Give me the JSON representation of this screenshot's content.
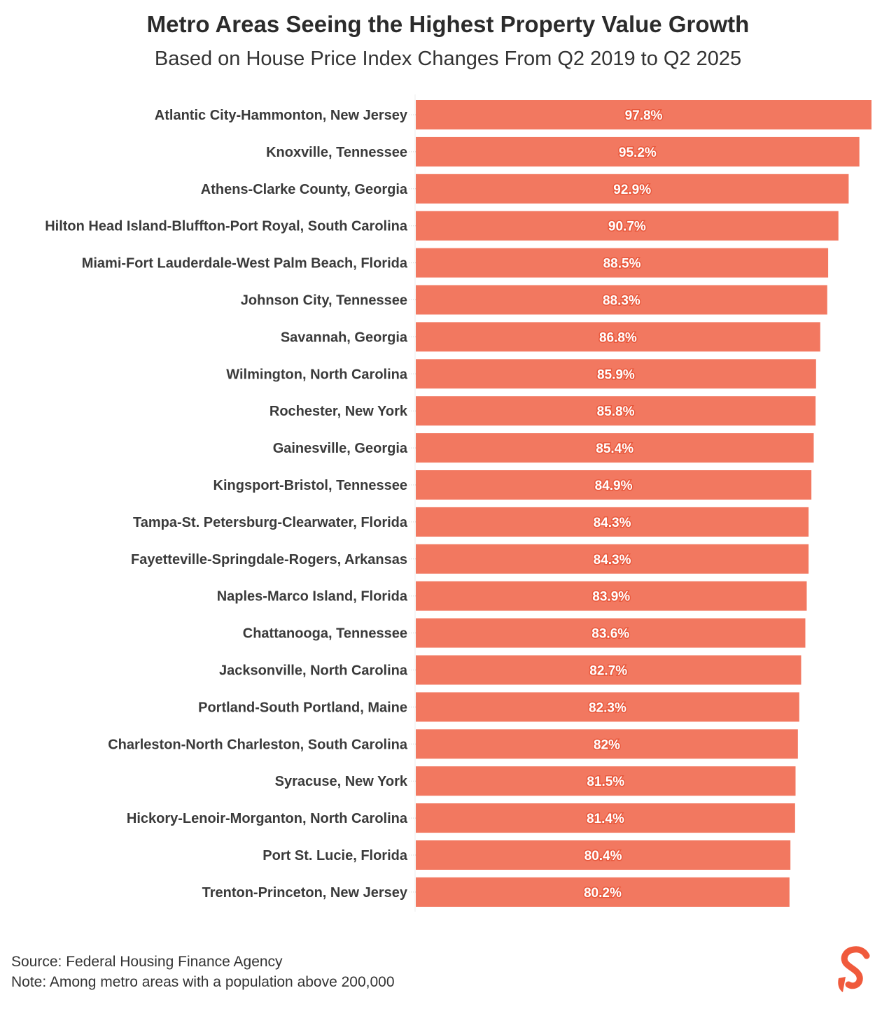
{
  "chart_data": {
    "type": "bar",
    "orientation": "horizontal",
    "title": "Metro Areas Seeing the Highest Property Value Growth",
    "subtitle": "Based on House Price Index Changes From Q2 2019 to Q2 2025",
    "categories": [
      "Atlantic City-Hammonton, New Jersey",
      "Knoxville, Tennessee",
      "Athens-Clarke County, Georgia",
      "Hilton Head Island-Bluffton-Port Royal, South Carolina",
      "Miami-Fort Lauderdale-West Palm Beach, Florida",
      "Johnson City, Tennessee",
      "Savannah, Georgia",
      "Wilmington, North Carolina",
      "Rochester, New York",
      "Gainesville, Georgia",
      "Kingsport-Bristol, Tennessee",
      "Tampa-St. Petersburg-Clearwater, Florida",
      "Fayetteville-Springdale-Rogers, Arkansas",
      "Naples-Marco Island, Florida",
      "Chattanooga, Tennessee",
      "Jacksonville, North Carolina",
      "Portland-South Portland, Maine",
      "Charleston-North Charleston, South Carolina",
      "Syracuse, New York",
      "Hickory-Lenoir-Morganton, North Carolina",
      "Port St. Lucie, Florida",
      "Trenton-Princeton, New Jersey"
    ],
    "values": [
      97.8,
      95.2,
      92.9,
      90.7,
      88.5,
      88.3,
      86.8,
      85.9,
      85.8,
      85.4,
      84.9,
      84.3,
      84.3,
      83.9,
      83.6,
      82.7,
      82.3,
      82,
      81.5,
      81.4,
      80.4,
      80.2
    ],
    "value_labels": [
      "97.8%",
      "95.2%",
      "92.9%",
      "90.7%",
      "88.5%",
      "88.3%",
      "86.8%",
      "85.9%",
      "85.8%",
      "85.4%",
      "84.9%",
      "84.3%",
      "84.3%",
      "83.9%",
      "83.6%",
      "82.7%",
      "82.3%",
      "82%",
      "81.5%",
      "81.4%",
      "80.4%",
      "80.2%"
    ],
    "xlim": [
      0,
      97.8
    ],
    "grid": false,
    "bar_color": "#F27860"
  },
  "footer": {
    "source": "Source: Federal Housing Finance Agency",
    "note": "Note: Among metro areas with a population above 200,000"
  },
  "logo": {
    "text": "S",
    "color": "#F05A3C"
  }
}
